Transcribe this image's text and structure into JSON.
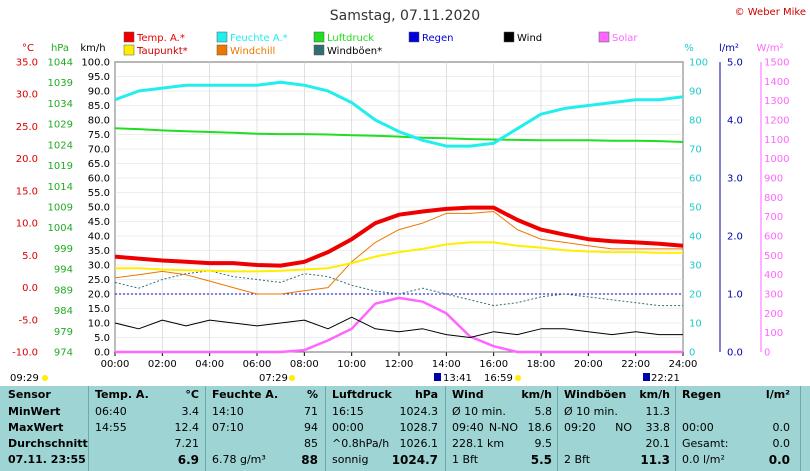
{
  "title": "Samstag, 07.11.2020",
  "copyright": "© Weber Mike",
  "axis_units": {
    "temp": "°C",
    "hpa": "hPa",
    "kmh": "km/h",
    "pct": "%",
    "lm2": "l/m²",
    "wm2": "W/m²"
  },
  "axes": {
    "temp_ticks": [
      "35.0",
      "30.0",
      "25.0",
      "20.0",
      "15.0",
      "10.0",
      "5.0",
      "0.0",
      "-5.0",
      "-10.0"
    ],
    "hpa_ticks": [
      "1044",
      "1039",
      "1034",
      "1029",
      "1024",
      "1019",
      "1014",
      "1009",
      "1004",
      "999",
      "994",
      "989",
      "984",
      "979",
      "974"
    ],
    "kmh_ticks": [
      "100.0",
      "95.0",
      "90.0",
      "85.0",
      "80.0",
      "75.0",
      "70.0",
      "65.0",
      "60.0",
      "55.0",
      "50.0",
      "45.0",
      "40.0",
      "35.0",
      "30.0",
      "25.0",
      "20.0",
      "15.0",
      "10.0",
      "5.0",
      "0.0"
    ],
    "pct_ticks": [
      "100",
      "90",
      "80",
      "70",
      "60",
      "50",
      "40",
      "30",
      "20",
      "10",
      "0"
    ],
    "lm2_ticks": [
      "5.0",
      "4.0",
      "3.0",
      "2.0",
      "1.0",
      "0.0"
    ],
    "wm2_ticks": [
      "1500",
      "1400",
      "1300",
      "1200",
      "1100",
      "1000",
      "900",
      "800",
      "700",
      "600",
      "500",
      "400",
      "300",
      "200",
      "100",
      "0"
    ],
    "time_ticks": [
      "00:00",
      "02:00",
      "04:00",
      "06:00",
      "08:00",
      "10:00",
      "12:00",
      "14:00",
      "16:00",
      "18:00",
      "20:00",
      "22:00",
      "24:00"
    ]
  },
  "legend": [
    {
      "label": "Temp. A.*",
      "color": "#ee0000"
    },
    {
      "label": "Feuchte A.*",
      "color": "#22eeee"
    },
    {
      "label": "Luftdruck",
      "color": "#22dd22"
    },
    {
      "label": "Regen",
      "color": "#0000dd"
    },
    {
      "label": "Wind",
      "color": "#000000"
    },
    {
      "label": "Solar",
      "color": "#ff66ff"
    },
    {
      "label": "Taupunkt*",
      "color": "#ffee00"
    },
    {
      "label": "Windchill",
      "color": "#ee7700"
    },
    {
      "label": "Windböen*",
      "color": "#2f6f6f"
    }
  ],
  "markers": {
    "left_time": "09:29",
    "sunrise": "07:29",
    "t1": "13:41",
    "t2": "16:59",
    "sunset": "22:21"
  },
  "chart_data": {
    "type": "line",
    "x_hours": [
      0,
      1,
      2,
      3,
      4,
      5,
      6,
      7,
      8,
      9,
      10,
      11,
      12,
      13,
      14,
      15,
      16,
      17,
      18,
      19,
      20,
      21,
      22,
      23,
      24
    ],
    "series": [
      {
        "name": "Temp. A.*",
        "axis": "temp",
        "values": [
          4.8,
          4.5,
          4.2,
          4.0,
          3.8,
          3.8,
          3.5,
          3.4,
          4.0,
          5.5,
          7.5,
          10.0,
          11.3,
          11.8,
          12.2,
          12.4,
          12.4,
          10.5,
          9.0,
          8.2,
          7.5,
          7.2,
          7.0,
          6.8,
          6.5
        ]
      },
      {
        "name": "Feuchte A.*",
        "axis": "pct",
        "values": [
          87,
          90,
          91,
          92,
          92,
          92,
          92,
          93,
          92,
          90,
          86,
          80,
          76,
          73,
          71,
          71,
          72,
          77,
          82,
          84,
          85,
          86,
          87,
          87,
          88
        ]
      },
      {
        "name": "Luftdruck",
        "axis": "hpa",
        "values": [
          1028.0,
          1027.8,
          1027.5,
          1027.3,
          1027.1,
          1026.9,
          1026.7,
          1026.6,
          1026.6,
          1026.5,
          1026.3,
          1026.2,
          1026.0,
          1025.7,
          1025.6,
          1025.4,
          1025.3,
          1025.2,
          1025.1,
          1025.1,
          1025.1,
          1025.0,
          1025.0,
          1024.9,
          1024.7
        ]
      },
      {
        "name": "Taupunkt*",
        "axis": "temp",
        "values": [
          3.0,
          3.0,
          2.8,
          2.7,
          2.6,
          2.5,
          2.5,
          2.6,
          2.8,
          3.0,
          3.8,
          4.8,
          5.5,
          6.0,
          6.7,
          7.0,
          7.0,
          6.5,
          6.2,
          5.8,
          5.6,
          5.5,
          5.5,
          5.4,
          5.4
        ]
      },
      {
        "name": "Windchill",
        "axis": "temp",
        "values": [
          1.5,
          2.0,
          2.5,
          2.0,
          1.0,
          0.0,
          -1.0,
          -1.0,
          -0.5,
          0.0,
          4.0,
          7.0,
          9.0,
          10.0,
          11.5,
          11.5,
          11.8,
          9.0,
          7.5,
          7.0,
          6.5,
          6.0,
          6.0,
          6.0,
          6.0
        ]
      },
      {
        "name": "Windböen*",
        "axis": "kmh",
        "values": [
          24,
          22,
          25,
          27,
          28,
          26,
          25,
          24,
          27,
          26,
          23,
          21,
          20,
          22,
          20,
          18,
          16,
          17,
          19,
          20,
          19,
          18,
          17,
          16,
          16
        ]
      },
      {
        "name": "Wind",
        "axis": "kmh",
        "values": [
          10,
          8,
          11,
          9,
          11,
          10,
          9,
          10,
          11,
          8,
          12,
          8,
          7,
          8,
          6,
          5,
          7,
          6,
          8,
          8,
          7,
          6,
          7,
          6,
          6
        ]
      },
      {
        "name": "Solar",
        "axis": "wm2",
        "values": [
          0,
          0,
          0,
          0,
          0,
          0,
          0,
          0,
          10,
          60,
          120,
          250,
          280,
          260,
          200,
          80,
          30,
          0,
          0,
          0,
          0,
          0,
          0,
          0,
          0
        ]
      }
    ],
    "rain_level": 1.0,
    "ylim": {
      "temp": [
        -10,
        35
      ],
      "hpa": [
        974,
        1044
      ],
      "kmh": [
        0,
        100
      ],
      "pct": [
        0,
        100
      ],
      "lm2": [
        0,
        5
      ],
      "wm2": [
        0,
        1500
      ]
    },
    "xlim": [
      0,
      24
    ]
  },
  "panel": {
    "sensor": {
      "header": "Sensor",
      "rows": [
        "MinWert",
        "MaxWert",
        "Durchschnitt",
        "07.11. 23:55"
      ]
    },
    "temp": {
      "header": "Temp. A.",
      "unit": "°C",
      "rows": [
        [
          "06:40",
          "3.4"
        ],
        [
          "14:55",
          "12.4"
        ],
        [
          "",
          "7.21"
        ],
        [
          "",
          "6.9"
        ]
      ]
    },
    "hum": {
      "header": "Feuchte A.",
      "unit": "%",
      "rows": [
        [
          "14:10",
          "71"
        ],
        [
          "07:10",
          "94"
        ],
        [
          "",
          "85"
        ],
        [
          "6.78 g/m³",
          "88"
        ]
      ]
    },
    "press": {
      "header": "Luftdruck",
      "unit": "hPa",
      "rows": [
        [
          "16:15",
          "1024.3"
        ],
        [
          "00:00",
          "1028.7"
        ],
        [
          "^0.8hPa/h",
          "1026.1"
        ],
        [
          "sonnig",
          "1024.7"
        ]
      ]
    },
    "wind": {
      "header": "Wind",
      "unit": "km/h",
      "rows": [
        [
          "Ø 10 min.",
          "",
          "5.8"
        ],
        [
          "09:40",
          "N-NO",
          "18.6"
        ],
        [
          "228.1 km",
          "",
          "9.5"
        ],
        [
          "1 Bft",
          "",
          "5.5"
        ]
      ]
    },
    "gust": {
      "header": "Windböen",
      "unit": "km/h",
      "rows": [
        [
          "Ø 10 min.",
          "",
          "11.3"
        ],
        [
          "09:20",
          "NO",
          "33.8"
        ],
        [
          "",
          "",
          "20.1"
        ],
        [
          "2 Bft",
          "",
          "11.3"
        ]
      ]
    },
    "rain": {
      "header": "Regen",
      "unit": "l/m²",
      "rows": [
        [
          "",
          ""
        ],
        [
          "00:00",
          "0.0"
        ],
        [
          "Gesamt:",
          "0.0"
        ],
        [
          "0.0 l/m²",
          "0.0"
        ]
      ]
    }
  }
}
